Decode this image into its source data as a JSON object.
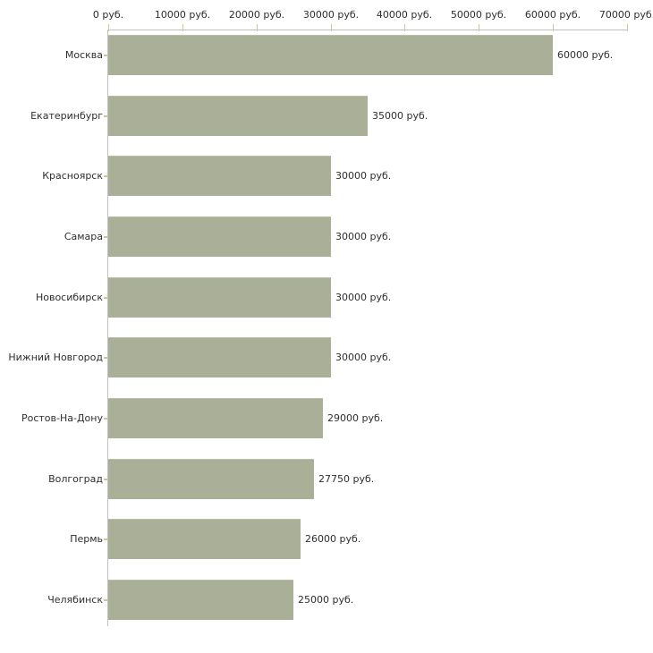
{
  "chart_data": {
    "type": "bar",
    "orientation": "horizontal",
    "title": "",
    "xlabel": "",
    "ylabel": "",
    "xlim": [
      0,
      70000
    ],
    "grid": false,
    "legend": false,
    "categories": [
      "Москва",
      "Екатеринбург",
      "Красноярск",
      "Самара",
      "Новосибирск",
      "Нижний Новгород",
      "Ростов-На-Дону",
      "Волгоград",
      "Пермь",
      "Челябинск"
    ],
    "values": [
      60000,
      35000,
      30000,
      30000,
      30000,
      30000,
      29000,
      27750,
      26000,
      25000
    ],
    "value_labels": [
      "60000 руб.",
      "35000 руб.",
      "30000 руб.",
      "30000 руб.",
      "30000 руб.",
      "30000 руб.",
      "29000 руб.",
      "27750 руб.",
      "26000 руб.",
      "25000 руб."
    ],
    "x_ticks": [
      0,
      10000,
      20000,
      30000,
      40000,
      50000,
      60000,
      70000
    ],
    "x_tick_labels": [
      "0 руб.",
      "10000 руб.",
      "20000 руб.",
      "30000 руб.",
      "40000 руб.",
      "50000 руб.",
      "60000 руб.",
      "70000 руб."
    ],
    "colors": {
      "bar": "#aab097",
      "bar_top_edge": "#b9bea4",
      "axis_line": "#c1c1c1",
      "tick_mark": "#ccc69b",
      "text": "#2e2e2e",
      "background": "#ffffff"
    }
  }
}
